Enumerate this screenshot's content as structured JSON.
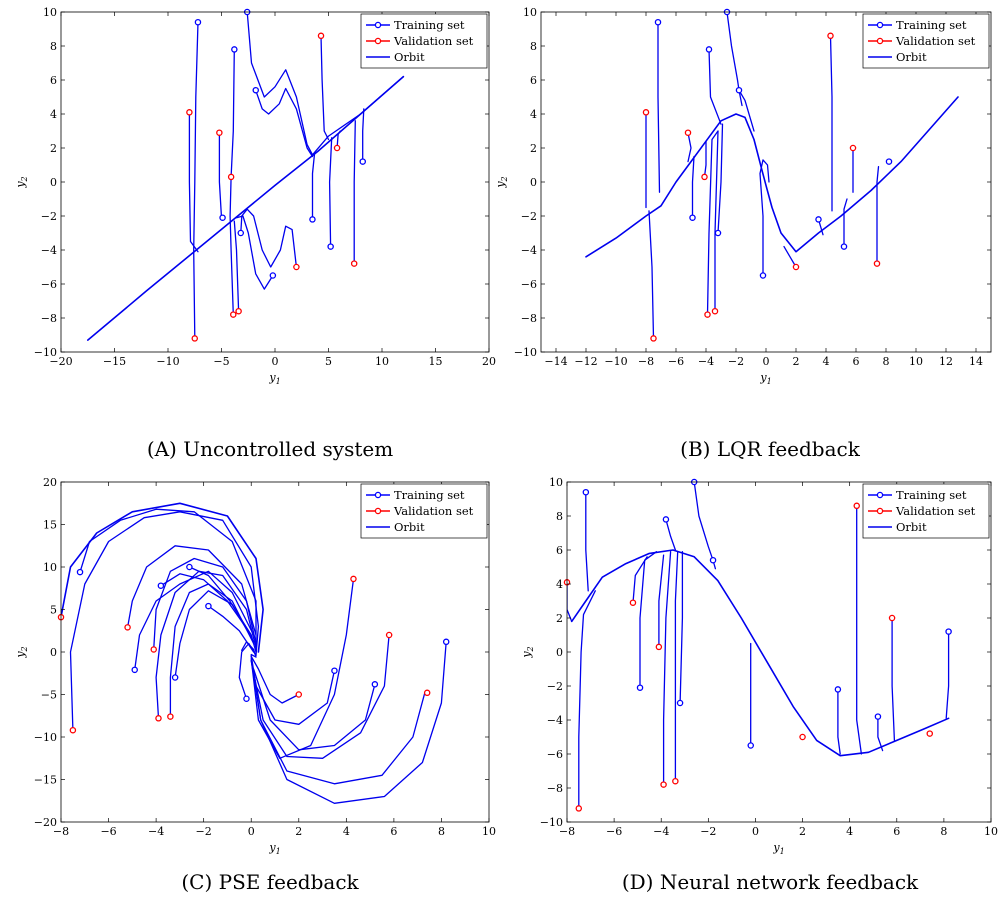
{
  "legend_items": [
    "Training set",
    "Validation set",
    "Orbit"
  ],
  "colors": {
    "training": "#0000ff",
    "validation": "#ff0000",
    "orbit": "#0000ee"
  },
  "chart_data": [
    {
      "type": "line",
      "caption": "(A) Uncontrolled system",
      "xlabel": "y1",
      "ylabel": "y2",
      "xlim": [
        -20,
        20
      ],
      "ylim": [
        -10,
        10
      ],
      "xticks": [
        -20,
        -15,
        -10,
        -5,
        0,
        5,
        10,
        15,
        20
      ],
      "yticks": [
        -10,
        -8,
        -6,
        -4,
        -2,
        0,
        2,
        4,
        6,
        8,
        10
      ],
      "legend_position": "top-right",
      "series": [
        {
          "name": "Training set",
          "points": [
            [
              -7.2,
              9.4
            ],
            [
              -3.8,
              7.8
            ],
            [
              -2.6,
              10
            ],
            [
              -1.8,
              5.4
            ],
            [
              -4.9,
              -2.1
            ],
            [
              -3.2,
              -3
            ],
            [
              -0.2,
              -5.5
            ],
            [
              3.5,
              -2.2
            ],
            [
              5.2,
              -3.8
            ],
            [
              8.2,
              1.2
            ]
          ]
        },
        {
          "name": "Validation set",
          "points": [
            [
              -8,
              4.1
            ],
            [
              -5.2,
              2.9
            ],
            [
              -4.1,
              0.3
            ],
            [
              -7.5,
              -9.2
            ],
            [
              -3.9,
              -7.8
            ],
            [
              -3.4,
              -7.6
            ],
            [
              4.3,
              8.6
            ],
            [
              5.8,
              2
            ],
            [
              2,
              -5
            ],
            [
              7.4,
              -4.8
            ]
          ]
        },
        {
          "name": "Orbit",
          "points": [
            [
              -17.5,
              -9.3
            ],
            [
              12,
              6.2
            ]
          ]
        }
      ]
    },
    {
      "type": "line",
      "caption": "(B) LQR feedback",
      "xlabel": "y1",
      "ylabel": "y2",
      "xlim": [
        -15,
        15
      ],
      "ylim": [
        -10,
        10
      ],
      "xticks": [
        -14,
        -12,
        -10,
        -8,
        -6,
        -4,
        -2,
        0,
        2,
        4,
        6,
        8,
        10,
        12,
        14
      ],
      "yticks": [
        -10,
        -8,
        -6,
        -4,
        -2,
        0,
        2,
        4,
        6,
        8,
        10
      ],
      "legend_position": "top-right",
      "series": [
        {
          "name": "Training set",
          "points": [
            [
              -7.2,
              9.4
            ],
            [
              -3.8,
              7.8
            ],
            [
              -2.6,
              10
            ],
            [
              -1.8,
              5.4
            ],
            [
              -4.9,
              -2.1
            ],
            [
              -3.2,
              -3
            ],
            [
              -0.2,
              -5.5
            ],
            [
              3.5,
              -2.2
            ],
            [
              5.2,
              -3.8
            ],
            [
              8.2,
              1.2
            ]
          ]
        },
        {
          "name": "Validation set",
          "points": [
            [
              -8,
              4.1
            ],
            [
              -5.2,
              2.9
            ],
            [
              -4.1,
              0.3
            ],
            [
              -7.5,
              -9.2
            ],
            [
              -3.9,
              -7.8
            ],
            [
              -3.4,
              -7.6
            ],
            [
              4.3,
              8.6
            ],
            [
              5.8,
              2
            ],
            [
              2,
              -5
            ],
            [
              7.4,
              -4.8
            ]
          ]
        },
        {
          "name": "Orbit",
          "points": [
            [
              -12,
              -4.4
            ],
            [
              12.8,
              5
            ]
          ]
        }
      ]
    },
    {
      "type": "line",
      "caption": "(C) PSE feedback",
      "xlabel": "y1",
      "ylabel": "y2",
      "xlim": [
        -8,
        10
      ],
      "ylim": [
        -20,
        20
      ],
      "xticks": [
        -8,
        -6,
        -4,
        -2,
        0,
        2,
        4,
        6,
        8,
        10
      ],
      "yticks": [
        -20,
        -15,
        -10,
        -5,
        0,
        5,
        10,
        15,
        20
      ],
      "legend_position": "top-right",
      "series": [
        {
          "name": "Training set",
          "points": [
            [
              -7.2,
              9.4
            ],
            [
              -3.8,
              7.8
            ],
            [
              -2.6,
              10
            ],
            [
              -1.8,
              5.4
            ],
            [
              -4.9,
              -2.1
            ],
            [
              -3.2,
              -3
            ],
            [
              -0.2,
              -5.5
            ],
            [
              3.5,
              -2.2
            ],
            [
              5.2,
              -3.8
            ],
            [
              8.2,
              1.2
            ]
          ]
        },
        {
          "name": "Validation set",
          "points": [
            [
              -8,
              4.1
            ],
            [
              -5.2,
              2.9
            ],
            [
              -4.1,
              0.3
            ],
            [
              -7.5,
              -9.2
            ],
            [
              -3.9,
              -7.8
            ],
            [
              -3.4,
              -7.6
            ],
            [
              4.3,
              8.6
            ],
            [
              5.8,
              2
            ],
            [
              2,
              -5
            ],
            [
              7.4,
              -4.8
            ]
          ]
        },
        {
          "name": "Orbit",
          "points": [
            [
              0,
              0
            ]
          ]
        }
      ]
    },
    {
      "type": "line",
      "caption": "(D) Neural network feedback",
      "xlabel": "y1",
      "ylabel": "y2",
      "xlim": [
        -8,
        10
      ],
      "ylim": [
        -10,
        10
      ],
      "xticks": [
        -8,
        -6,
        -4,
        -2,
        0,
        2,
        4,
        6,
        8,
        10
      ],
      "yticks": [
        -10,
        -8,
        -6,
        -4,
        -2,
        0,
        2,
        4,
        6,
        8,
        10
      ],
      "legend_position": "top-right",
      "series": [
        {
          "name": "Training set",
          "points": [
            [
              -7.2,
              9.4
            ],
            [
              -3.8,
              7.8
            ],
            [
              -2.6,
              10
            ],
            [
              -1.8,
              5.4
            ],
            [
              -4.9,
              -2.1
            ],
            [
              -3.2,
              -3
            ],
            [
              -0.2,
              -5.5
            ],
            [
              3.5,
              -2.2
            ],
            [
              5.2,
              -3.8
            ],
            [
              8.2,
              1.2
            ]
          ]
        },
        {
          "name": "Validation set",
          "points": [
            [
              -8,
              4.1
            ],
            [
              -5.2,
              2.9
            ],
            [
              -4.1,
              0.3
            ],
            [
              -7.5,
              -9.2
            ],
            [
              -3.9,
              -7.8
            ],
            [
              -3.4,
              -7.6
            ],
            [
              4.3,
              8.6
            ],
            [
              5.8,
              2
            ],
            [
              2,
              -5
            ],
            [
              7.4,
              -4.8
            ]
          ]
        },
        {
          "name": "Orbit",
          "points": [
            [
              -7.8,
              1.8
            ],
            [
              -3.5,
              6
            ],
            [
              3.5,
              -6.1
            ],
            [
              8.2,
              -3.9
            ]
          ]
        }
      ]
    }
  ]
}
